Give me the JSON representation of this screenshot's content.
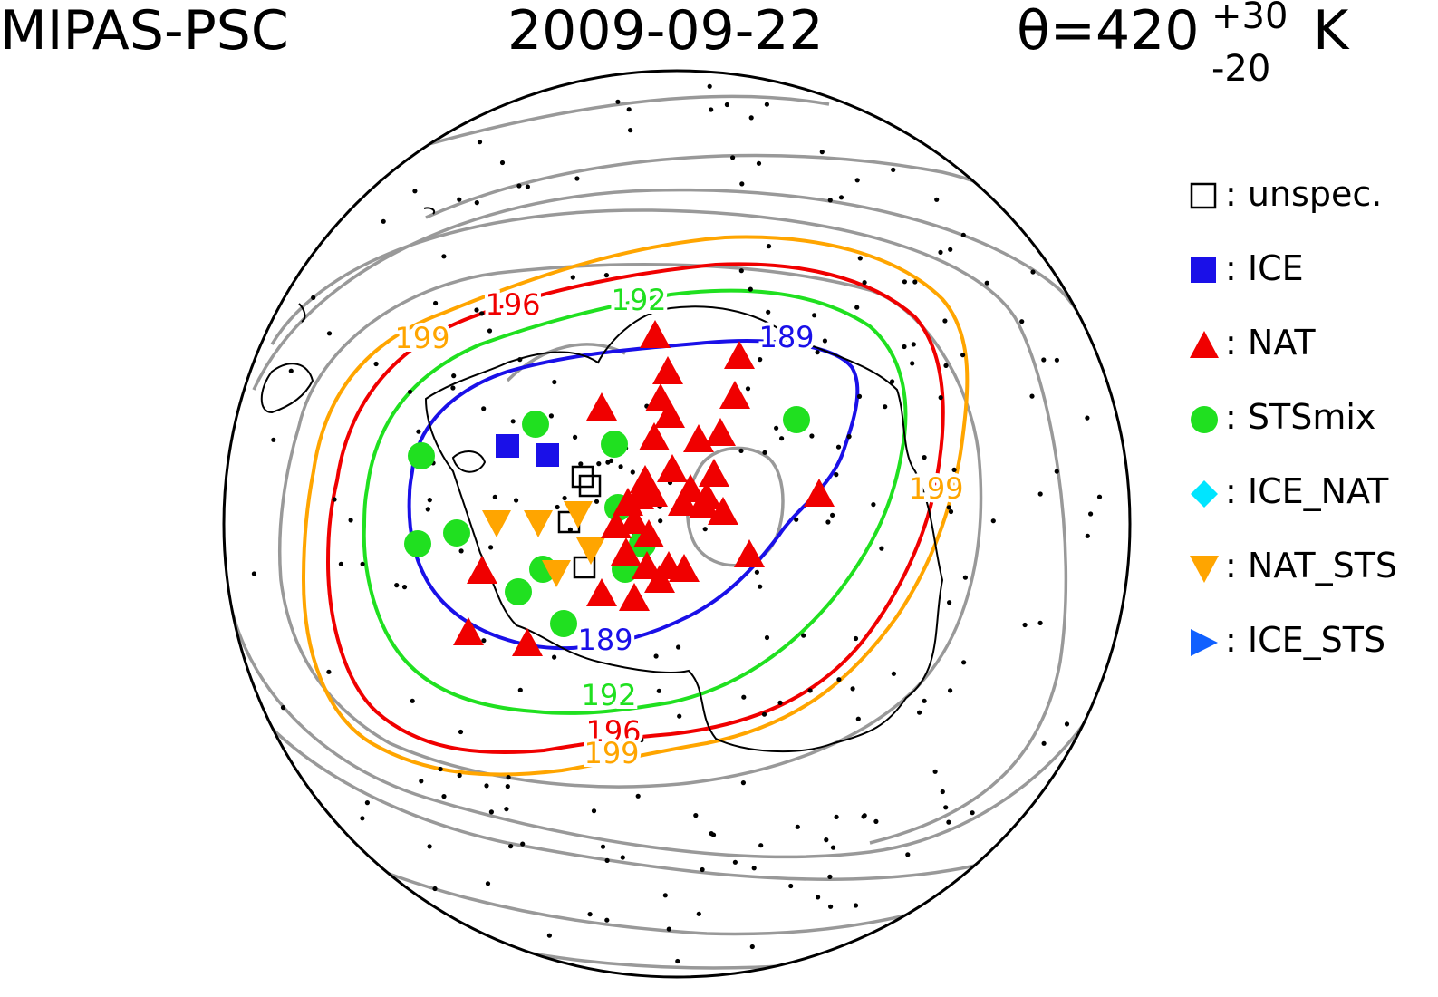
{
  "header": {
    "instrument": "MIPAS-PSC",
    "date": "2009-09-22",
    "theta_prefix": "θ=420",
    "theta_plus": "+30",
    "theta_minus": "-20",
    "theta_unit": "K"
  },
  "legend": [
    {
      "label": "unspec.",
      "symbol": "open-square-icon",
      "color": "#000000"
    },
    {
      "label": "ICE",
      "symbol": "filled-square-icon",
      "color": "#1a10e8"
    },
    {
      "label": "NAT",
      "symbol": "up-triangle-icon",
      "color": "#f00000"
    },
    {
      "label": "STSmix",
      "symbol": "circle-icon",
      "color": "#20e020"
    },
    {
      "label": "ICE_NAT",
      "symbol": "diamond-icon",
      "color": "#00e5ff"
    },
    {
      "label": "NAT_STS",
      "symbol": "down-triangle-icon",
      "color": "#ffa500"
    },
    {
      "label": "ICE_STS",
      "symbol": "right-triangle-icon",
      "color": "#1060ff"
    }
  ],
  "contour_labels": [
    {
      "text": "189",
      "color": "#1a10e8"
    },
    {
      "text": "189",
      "color": "#1a10e8"
    },
    {
      "text": "192",
      "color": "#20e020"
    },
    {
      "text": "192",
      "color": "#20e020"
    },
    {
      "text": "196",
      "color": "#f00000"
    },
    {
      "text": "196",
      "color": "#f00000"
    },
    {
      "text": "199",
      "color": "#ffa500"
    },
    {
      "text": "199",
      "color": "#ffa500"
    },
    {
      "text": "199",
      "color": "#ffa500"
    }
  ],
  "colors": {
    "grey_contour": "#999999",
    "coastline": "#000000",
    "background": "#ffffff"
  }
}
